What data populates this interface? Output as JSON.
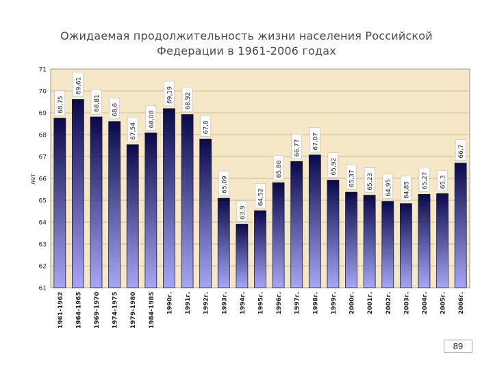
{
  "title": {
    "line1": "Ожидаемая продолжительность жизни населения Российской",
    "line2": "Федерации в 1961-2006 годах"
  },
  "page_number": "89",
  "colors": {
    "plot_background": "#f6e8c6",
    "bar_top": "#0a0a4a",
    "bar_bottom": "#a6a6f5",
    "label_box": "#ffffff"
  },
  "chart_data": {
    "type": "bar",
    "title": "Ожидаемая продолжительность жизни населения Российской Федерации в 1961-2006 годах",
    "xlabel": "",
    "ylabel": "лет",
    "ylim": [
      61,
      71
    ],
    "yticks": [
      "61",
      "62",
      "63",
      "64",
      "65",
      "66",
      "67",
      "68",
      "69",
      "70",
      "71"
    ],
    "grid": true,
    "legend": "none",
    "categories": [
      "1961-1962",
      "1964-1965",
      "1969-1970",
      "1974-1975",
      "1979-1980",
      "1984-1985",
      "1990г.",
      "1991г.",
      "1992г.",
      "1993г.",
      "1994г.",
      "1995г.",
      "1996г.",
      "1997г.",
      "1998г.",
      "1999г.",
      "2000г.",
      "2001г.",
      "2002г.",
      "2003г.",
      "2004г.",
      "2005г.",
      "2006г."
    ],
    "values": [
      68.75,
      69.61,
      68.81,
      68.6,
      67.54,
      68.08,
      69.19,
      68.92,
      67.8,
      65.09,
      63.9,
      64.52,
      65.8,
      66.77,
      67.07,
      65.92,
      65.37,
      65.23,
      64.95,
      64.85,
      65.27,
      65.3,
      66.7
    ],
    "data_labels": [
      "68,75",
      "69,61",
      "68,81",
      "68,6",
      "67,54",
      "68,08",
      "69,19",
      "68,92",
      "67,8",
      "65,09",
      "63,9",
      "64,52",
      "65,80",
      "66,77",
      "67,07",
      "65,92",
      "65,37",
      "65,23",
      "64,95",
      "64,85",
      "65,27",
      "65,3",
      "66,7"
    ]
  }
}
